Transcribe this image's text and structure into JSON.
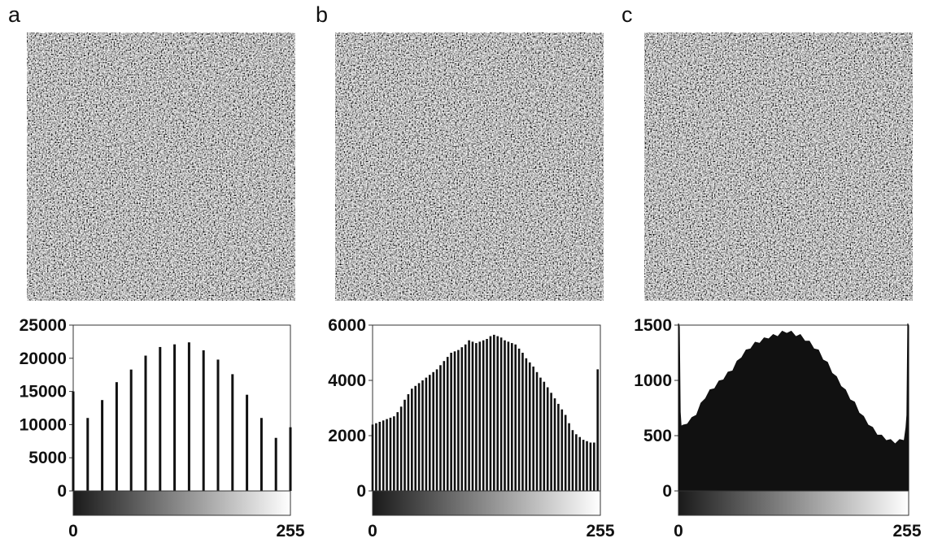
{
  "figure": {
    "panels": [
      {
        "letter": "a",
        "x_min_label": "0",
        "x_max_label": "255"
      },
      {
        "letter": "b",
        "x_min_label": "0",
        "x_max_label": "255"
      },
      {
        "letter": "c",
        "x_min_label": "0",
        "x_max_label": "255"
      }
    ]
  },
  "chart_data": [
    {
      "type": "bar",
      "panel": "a",
      "title": "",
      "xlabel": "",
      "ylabel": "",
      "xlim": [
        0,
        255
      ],
      "ylim": [
        0,
        25000
      ],
      "y_ticks": [
        0,
        5000,
        10000,
        15000,
        20000,
        25000
      ],
      "x_ticks": [
        0,
        255
      ],
      "grid": false,
      "colorbar": "grayscale gradient black to white along x-axis",
      "x": [
        0,
        17,
        34,
        51,
        68,
        85,
        102,
        119,
        136,
        153,
        170,
        187,
        204,
        221,
        238,
        255
      ],
      "values": [
        15000,
        11000,
        13700,
        16400,
        18300,
        20400,
        21700,
        22100,
        22400,
        21200,
        19800,
        17600,
        14500,
        11000,
        8000,
        9600
      ]
    },
    {
      "type": "bar",
      "panel": "b",
      "title": "",
      "xlabel": "",
      "ylabel": "",
      "xlim": [
        0,
        255
      ],
      "ylim": [
        0,
        6000
      ],
      "y_ticks": [
        0,
        2000,
        4000,
        6000
      ],
      "x_ticks": [
        0,
        255
      ],
      "grid": false,
      "colorbar": "grayscale gradient black to white along x-axis",
      "x": [
        0,
        4,
        8,
        12,
        16,
        20,
        24,
        28,
        32,
        36,
        40,
        44,
        48,
        52,
        56,
        60,
        64,
        68,
        72,
        76,
        80,
        84,
        88,
        92,
        96,
        100,
        104,
        108,
        112,
        116,
        120,
        124,
        128,
        132,
        136,
        140,
        144,
        148,
        152,
        156,
        160,
        164,
        168,
        172,
        176,
        180,
        184,
        188,
        192,
        196,
        200,
        204,
        208,
        212,
        216,
        220,
        224,
        228,
        232,
        236,
        240,
        244,
        248,
        252
      ],
      "values": [
        2400,
        2450,
        2500,
        2550,
        2600,
        2650,
        2700,
        2850,
        3050,
        3300,
        3500,
        3700,
        3800,
        3900,
        4000,
        4100,
        4200,
        4300,
        4400,
        4550,
        4700,
        4850,
        5000,
        5050,
        5100,
        5200,
        5300,
        5450,
        5400,
        5350,
        5400,
        5450,
        5500,
        5600,
        5650,
        5600,
        5550,
        5450,
        5400,
        5350,
        5300,
        5150,
        5000,
        4800,
        4650,
        4500,
        4300,
        4100,
        3950,
        3750,
        3550,
        3350,
        3150,
        2950,
        2750,
        2450,
        2200,
        2050,
        1950,
        1850,
        1800,
        1750,
        1750,
        4400
      ]
    },
    {
      "type": "bar",
      "panel": "c",
      "title": "",
      "xlabel": "",
      "ylabel": "",
      "xlim": [
        0,
        255
      ],
      "ylim": [
        0,
        1500
      ],
      "y_ticks": [
        0,
        500,
        1000,
        1500
      ],
      "x_ticks": [
        0,
        255
      ],
      "grid": false,
      "colorbar": "grayscale gradient black to white along x-axis",
      "x": [
        0,
        1,
        2,
        3,
        5,
        10,
        15,
        20,
        25,
        30,
        35,
        40,
        45,
        50,
        55,
        60,
        65,
        70,
        75,
        80,
        85,
        90,
        95,
        100,
        105,
        110,
        115,
        120,
        125,
        130,
        135,
        140,
        145,
        150,
        155,
        160,
        165,
        170,
        175,
        180,
        185,
        190,
        195,
        200,
        205,
        210,
        215,
        220,
        225,
        230,
        235,
        240,
        245,
        250,
        252,
        253,
        254,
        255
      ],
      "values": [
        1500,
        1500,
        700,
        600,
        580,
        620,
        650,
        700,
        780,
        850,
        900,
        940,
        980,
        1020,
        1060,
        1100,
        1160,
        1220,
        1260,
        1300,
        1330,
        1350,
        1370,
        1390,
        1400,
        1410,
        1430,
        1440,
        1430,
        1410,
        1400,
        1370,
        1340,
        1300,
        1260,
        1200,
        1150,
        1080,
        1020,
        960,
        900,
        840,
        790,
        720,
        660,
        610,
        560,
        520,
        490,
        470,
        450,
        440,
        450,
        470,
        560,
        700,
        1500,
        1500
      ]
    }
  ]
}
